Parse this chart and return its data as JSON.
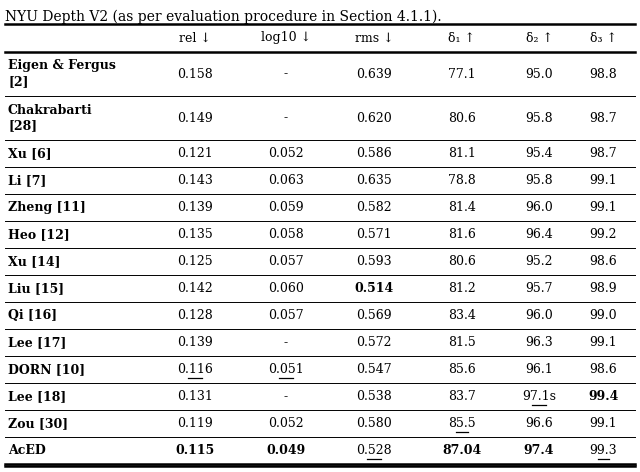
{
  "title": "NYU Depth V2 (as per evaluation procedure in Section 4.1.1).",
  "columns": [
    "rel ↓",
    "log10 ↓",
    "rms ↓",
    "δ₁ ↑",
    "δ₂ ↑",
    "δ₃ ↑"
  ],
  "rows": [
    {
      "name": "Eigen & Fergus\n[2]",
      "bold_name": true,
      "values": [
        "0.158",
        "-",
        "0.639",
        "77.1",
        "95.0",
        "98.8"
      ],
      "bold": [
        false,
        false,
        false,
        false,
        false,
        false
      ],
      "underline": [
        false,
        false,
        false,
        false,
        false,
        false
      ],
      "double_row": true
    },
    {
      "name": "Chakrabarti\n[28]",
      "bold_name": true,
      "values": [
        "0.149",
        "-",
        "0.620",
        "80.6",
        "95.8",
        "98.7"
      ],
      "bold": [
        false,
        false,
        false,
        false,
        false,
        false
      ],
      "underline": [
        false,
        false,
        false,
        false,
        false,
        false
      ],
      "double_row": true
    },
    {
      "name": "Xu [6]",
      "bold_name": true,
      "values": [
        "0.121",
        "0.052",
        "0.586",
        "81.1",
        "95.4",
        "98.7"
      ],
      "bold": [
        false,
        false,
        false,
        false,
        false,
        false
      ],
      "underline": [
        false,
        false,
        false,
        false,
        false,
        false
      ],
      "double_row": false
    },
    {
      "name": "Li [7]",
      "bold_name": true,
      "values": [
        "0.143",
        "0.063",
        "0.635",
        "78.8",
        "95.8",
        "99.1"
      ],
      "bold": [
        false,
        false,
        false,
        false,
        false,
        false
      ],
      "underline": [
        false,
        false,
        false,
        false,
        false,
        false
      ],
      "double_row": false
    },
    {
      "name": "Zheng [11]",
      "bold_name": true,
      "values": [
        "0.139",
        "0.059",
        "0.582",
        "81.4",
        "96.0",
        "99.1"
      ],
      "bold": [
        false,
        false,
        false,
        false,
        false,
        false
      ],
      "underline": [
        false,
        false,
        false,
        false,
        false,
        false
      ],
      "double_row": false
    },
    {
      "name": "Heo [12]",
      "bold_name": true,
      "values": [
        "0.135",
        "0.058",
        "0.571",
        "81.6",
        "96.4",
        "99.2"
      ],
      "bold": [
        false,
        false,
        false,
        false,
        false,
        false
      ],
      "underline": [
        false,
        false,
        false,
        false,
        false,
        false
      ],
      "double_row": false
    },
    {
      "name": "Xu [14]",
      "bold_name": true,
      "values": [
        "0.125",
        "0.057",
        "0.593",
        "80.6",
        "95.2",
        "98.6"
      ],
      "bold": [
        false,
        false,
        false,
        false,
        false,
        false
      ],
      "underline": [
        false,
        false,
        false,
        false,
        false,
        false
      ],
      "double_row": false
    },
    {
      "name": "Liu [15]",
      "bold_name": true,
      "values": [
        "0.142",
        "0.060",
        "0.514",
        "81.2",
        "95.7",
        "98.9"
      ],
      "bold": [
        false,
        false,
        true,
        false,
        false,
        false
      ],
      "underline": [
        false,
        false,
        false,
        false,
        false,
        false
      ],
      "double_row": false
    },
    {
      "name": "Qi [16]",
      "bold_name": true,
      "values": [
        "0.128",
        "0.057",
        "0.569",
        "83.4",
        "96.0",
        "99.0"
      ],
      "bold": [
        false,
        false,
        false,
        false,
        false,
        false
      ],
      "underline": [
        false,
        false,
        false,
        false,
        false,
        false
      ],
      "double_row": false
    },
    {
      "name": "Lee [17]",
      "bold_name": true,
      "values": [
        "0.139",
        "-",
        "0.572",
        "81.5",
        "96.3",
        "99.1"
      ],
      "bold": [
        false,
        false,
        false,
        false,
        false,
        false
      ],
      "underline": [
        false,
        false,
        false,
        false,
        false,
        false
      ],
      "double_row": false
    },
    {
      "name": "DORN [10]",
      "bold_name": true,
      "values": [
        "0.116",
        "0.051",
        "0.547",
        "85.6",
        "96.1",
        "98.6"
      ],
      "bold": [
        false,
        false,
        false,
        false,
        false,
        false
      ],
      "underline": [
        true,
        true,
        false,
        false,
        false,
        false
      ],
      "double_row": false
    },
    {
      "name": "Lee [18]",
      "bold_name": true,
      "values": [
        "0.131",
        "-",
        "0.538",
        "83.7",
        "97.1s",
        "99.4"
      ],
      "bold": [
        false,
        false,
        false,
        false,
        false,
        true
      ],
      "underline": [
        false,
        false,
        false,
        false,
        true,
        false
      ],
      "double_row": false
    },
    {
      "name": "Zou [30]",
      "bold_name": true,
      "values": [
        "0.119",
        "0.052",
        "0.580",
        "85.5",
        "96.6",
        "99.1"
      ],
      "bold": [
        false,
        false,
        false,
        false,
        false,
        false
      ],
      "underline": [
        false,
        false,
        false,
        true,
        false,
        false
      ],
      "double_row": false
    },
    {
      "name": "AcED",
      "bold_name": true,
      "values": [
        "0.115",
        "0.049",
        "0.528",
        "87.04",
        "97.4",
        "99.3"
      ],
      "bold": [
        true,
        true,
        false,
        true,
        true,
        false
      ],
      "underline": [
        false,
        false,
        true,
        false,
        false,
        true
      ],
      "double_row": false,
      "last_row": true
    }
  ],
  "background_color": "#ffffff",
  "text_color": "#000000",
  "font_size": 9.0,
  "header_font_size": 9.0,
  "title_font_size": 10.0
}
